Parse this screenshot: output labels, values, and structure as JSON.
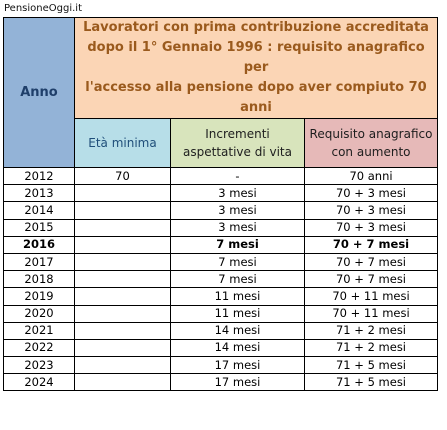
{
  "brand": "PensioneOggi.it",
  "header": {
    "anno": "Anno",
    "title_lines": [
      "Lavoratori con prima contribuzione accreditata",
      "dopo il 1° Gennaio 1996 : requisito anagrafico per",
      "l'accesso alla pensione dopo aver compiuto 70 anni"
    ],
    "col_eta": "Età minima",
    "col_incrementi_lines": [
      "Incrementi",
      "aspettative di vita"
    ],
    "col_requisito_lines": [
      "Requisito anagrafico",
      "con aumento"
    ]
  },
  "rows": [
    {
      "anno": "2012",
      "eta": "70",
      "incr": "-",
      "req": "70 anni"
    },
    {
      "anno": "2013",
      "eta": "",
      "incr": "3 mesi",
      "req": "70 + 3 mesi"
    },
    {
      "anno": "2014",
      "eta": "",
      "incr": "3 mesi",
      "req": "70 + 3 mesi"
    },
    {
      "anno": "2015",
      "eta": "",
      "incr": "3 mesi",
      "req": "70 + 3 mesi"
    },
    {
      "anno": "2016",
      "eta": "",
      "incr": "7 mesi",
      "req": "70 + 7 mesi"
    },
    {
      "anno": "2017",
      "eta": "",
      "incr": "7 mesi",
      "req": "70 + 7 mesi"
    },
    {
      "anno": "2018",
      "eta": "",
      "incr": "7 mesi",
      "req": "70 + 7 mesi"
    },
    {
      "anno": "2019",
      "eta": "",
      "incr": "11 mesi",
      "req": "70 + 11 mesi"
    },
    {
      "anno": "2020",
      "eta": "",
      "incr": "11 mesi",
      "req": "70 + 11 mesi"
    },
    {
      "anno": "2021",
      "eta": "",
      "incr": "14 mesi",
      "req": "71 + 2 mesi"
    },
    {
      "anno": "2022",
      "eta": "",
      "incr": "14 mesi",
      "req": "71 + 2 mesi"
    },
    {
      "anno": "2023",
      "eta": "",
      "incr": "17 mesi",
      "req": "71 + 5 mesi"
    },
    {
      "anno": "2024",
      "eta": "",
      "incr": "17 mesi",
      "req": "71 + 5 mesi"
    }
  ],
  "bold_row_index": 4
}
